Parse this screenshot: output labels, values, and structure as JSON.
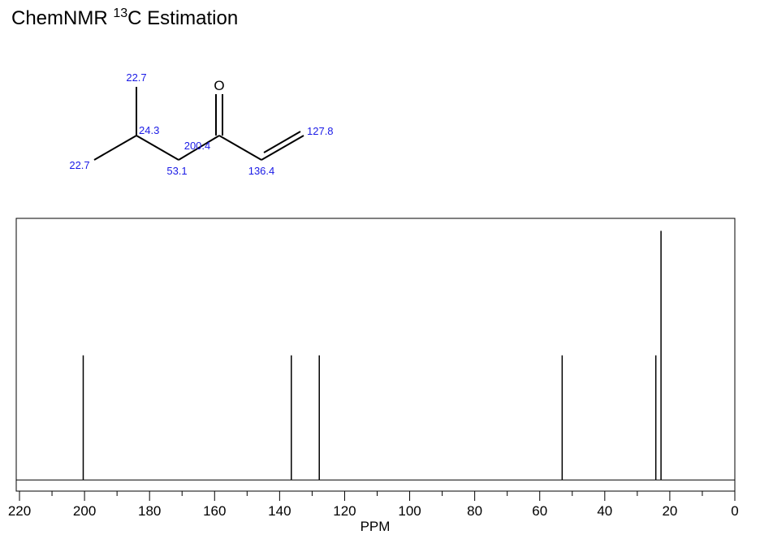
{
  "chart_data": {
    "type": "spectrum",
    "title": {
      "prefix": "ChemNMR",
      "superscript": "13",
      "suffix": "C Estimation"
    },
    "x_label": "PPM",
    "x": [
      200.4,
      136.4,
      127.8,
      53.1,
      24.3,
      22.7
    ],
    "values": [
      1,
      1,
      1,
      1,
      1,
      2
    ],
    "color": "#000000",
    "xlim": [
      221,
      0
    ],
    "xticks": [
      220,
      200,
      180,
      160,
      140,
      120,
      100,
      80,
      60,
      40,
      20,
      0
    ],
    "xminorticks": [
      210,
      190,
      170,
      150,
      130,
      110,
      90,
      70,
      50,
      30,
      10
    ],
    "ylim": [
      -0.09,
      2.1
    ]
  },
  "molecule": {
    "oxygen": "O",
    "shifts": [
      "22.7",
      "24.3",
      "22.7",
      "53.1",
      "200.4",
      "136.4",
      "127.8"
    ]
  }
}
